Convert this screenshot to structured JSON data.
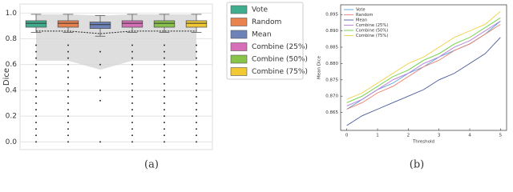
{
  "chart_data": [
    {
      "type": "box",
      "caption": "(a)",
      "y_label": "Dice",
      "categories": [
        null,
        null,
        null,
        null,
        null,
        null
      ],
      "ylim": [
        -0.06,
        1.07
      ],
      "yticks": [
        {
          "value": 0,
          "label": "0.0"
        },
        0.2,
        0.4,
        0.6,
        0.8,
        {
          "value": 1,
          "label": "1.0"
        }
      ],
      "grid": true,
      "legend": "outside-right",
      "band_low": [
        0.63,
        0.63,
        0.56,
        0.63,
        0.63,
        0.63
      ],
      "band_high": [
        0.99,
        0.99,
        0.98,
        0.99,
        0.99,
        0.99
      ],
      "dashed": [
        0.86,
        0.86,
        0.84,
        0.86,
        0.86,
        0.86
      ],
      "series": [
        {
          "name": "Vote",
          "color": "#3fae8f",
          "whislo": 0.85,
          "q1": 0.89,
          "med": 0.92,
          "q3": 0.94,
          "whishi": 0.99,
          "fliers": [
            0.75,
            0.7,
            0.65,
            0.6,
            0.55,
            0.5,
            0.45,
            0.4,
            0.35,
            0.3,
            0.25,
            0.2,
            0.15,
            0.1,
            0.05,
            0.0
          ]
        },
        {
          "name": "Random",
          "color": "#e8834e",
          "whislo": 0.85,
          "q1": 0.89,
          "med": 0.92,
          "q3": 0.94,
          "whishi": 0.99,
          "fliers": [
            0.75,
            0.7,
            0.65,
            0.6,
            0.55,
            0.5,
            0.45,
            0.4,
            0.35,
            0.3,
            0.25,
            0.2,
            0.15,
            0.1,
            0.05,
            0.0
          ]
        },
        {
          "name": "Mean",
          "color": "#6d83b8",
          "whislo": 0.82,
          "q1": 0.88,
          "med": 0.91,
          "q3": 0.93,
          "whishi": 0.98,
          "fliers": [
            0.7,
            0.6,
            0.5,
            0.4,
            0.32,
            0.0
          ]
        },
        {
          "name": "Combine (25%)",
          "color": "#d66fb7",
          "whislo": 0.85,
          "q1": 0.89,
          "med": 0.92,
          "q3": 0.94,
          "whishi": 0.99,
          "fliers": [
            0.75,
            0.7,
            0.65,
            0.6,
            0.55,
            0.5,
            0.45,
            0.4,
            0.35,
            0.3,
            0.25,
            0.2,
            0.15,
            0.1,
            0.05,
            0.0
          ]
        },
        {
          "name": "Combine (50%)",
          "color": "#88c34a",
          "whislo": 0.85,
          "q1": 0.89,
          "med": 0.92,
          "q3": 0.94,
          "whishi": 0.99,
          "fliers": [
            0.75,
            0.7,
            0.65,
            0.6,
            0.55,
            0.5,
            0.45,
            0.4,
            0.35,
            0.3,
            0.25,
            0.2,
            0.15,
            0.1,
            0.05,
            0.0
          ]
        },
        {
          "name": "Combine (75%)",
          "color": "#f2c933",
          "whislo": 0.85,
          "q1": 0.89,
          "med": 0.92,
          "q3": 0.94,
          "whishi": 0.99,
          "fliers": [
            0.75,
            0.7,
            0.65,
            0.6,
            0.55,
            0.5,
            0.45,
            0.4,
            0.35,
            0.3,
            0.25,
            0.2,
            0.15,
            0.1,
            0.05,
            0.0
          ]
        }
      ]
    },
    {
      "type": "line",
      "caption": "(b)",
      "x_label": "Threshold",
      "y_label": "Mean Dice",
      "x": [
        0,
        0.5,
        1,
        1.5,
        2,
        2.5,
        3,
        3.5,
        4,
        4.5,
        5
      ],
      "xlim": [
        -0.2,
        5.2
      ],
      "xticks": [
        0,
        1,
        2,
        3,
        4,
        5
      ],
      "ylim": [
        0.8595,
        0.898
      ],
      "yticks": [
        0.865,
        {
          "value": 0.87,
          "label": "0.870"
        },
        0.875,
        {
          "value": 0.88,
          "label": "0.880"
        },
        0.885,
        {
          "value": 0.89,
          "label": "0.890"
        },
        0.895
      ],
      "legend": "upper-left",
      "series": [
        {
          "name": "Vote",
          "color": "#5aa0d8",
          "values": [
            0.866,
            0.869,
            0.872,
            0.874,
            0.877,
            0.879,
            0.882,
            0.884,
            0.886,
            0.889,
            0.893
          ]
        },
        {
          "name": "Random",
          "color": "#e8806e",
          "values": [
            0.866,
            0.868,
            0.871,
            0.873,
            0.876,
            0.879,
            0.881,
            0.884,
            0.886,
            0.889,
            0.892
          ]
        },
        {
          "name": "Mean",
          "color": "#4a5a9a",
          "values": [
            0.861,
            0.864,
            0.866,
            0.868,
            0.87,
            0.872,
            0.875,
            0.877,
            0.88,
            0.883,
            0.888
          ]
        },
        {
          "name": "Combine (25%)",
          "color": "#b07ad8",
          "values": [
            0.867,
            0.869,
            0.872,
            0.875,
            0.877,
            0.88,
            0.882,
            0.885,
            0.887,
            0.89,
            0.893
          ]
        },
        {
          "name": "Combine (50%)",
          "color": "#6ccf3e",
          "values": [
            0.868,
            0.87,
            0.873,
            0.876,
            0.878,
            0.881,
            0.883,
            0.886,
            0.888,
            0.891,
            0.894
          ]
        },
        {
          "name": "Combine (75%)",
          "color": "#f0d040",
          "values": [
            0.869,
            0.871,
            0.874,
            0.877,
            0.88,
            0.882,
            0.885,
            0.888,
            0.89,
            0.892,
            0.896
          ]
        }
      ]
    }
  ]
}
